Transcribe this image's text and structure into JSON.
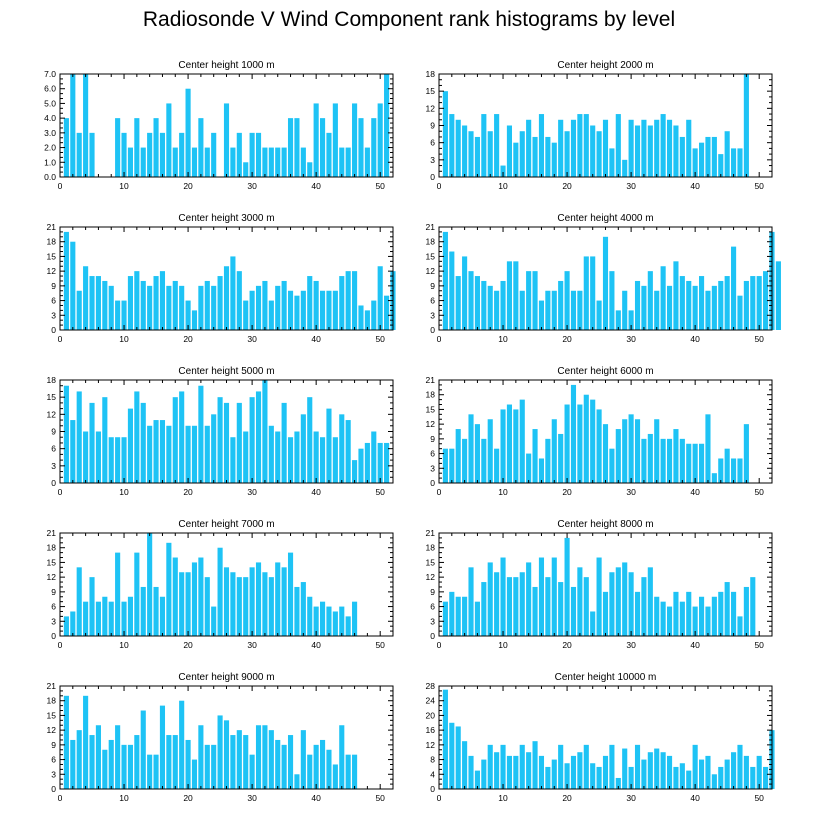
{
  "title": "Radiosonde V Wind Component rank histograms by level",
  "colors": {
    "bar": "#1ec3f5",
    "axis": "#000000"
  },
  "chart_data": [
    {
      "type": "bar",
      "title": "Center height 1000 m",
      "xlim": [
        0,
        52
      ],
      "ylim": [
        0,
        7
      ],
      "ytick_step": 1,
      "x_ticks": [
        "0",
        "10",
        "20",
        "30",
        "40",
        "50"
      ],
      "y_ticks": [
        "0.0",
        "1.0",
        "2.0",
        "3.0",
        "4.0",
        "5.0",
        "6.0",
        "7.0"
      ],
      "values": [
        4,
        7,
        3,
        7,
        3,
        0,
        0,
        0,
        4,
        3,
        2,
        4,
        2,
        3,
        4,
        3,
        5,
        2,
        3,
        6,
        2,
        4,
        2,
        3,
        0,
        5,
        2,
        3,
        1,
        3,
        3,
        2,
        2,
        2,
        2,
        4,
        4,
        2,
        1,
        5,
        4,
        3,
        5,
        2,
        2,
        5,
        4,
        2,
        4,
        5,
        7
      ]
    },
    {
      "type": "bar",
      "title": "Center height 2000 m",
      "xlim": [
        0,
        52
      ],
      "ylim": [
        0,
        18
      ],
      "ytick_step": 3,
      "x_ticks": [
        "0",
        "10",
        "20",
        "30",
        "40",
        "50"
      ],
      "y_ticks": [
        "0",
        "3",
        "6",
        "9",
        "12",
        "15",
        "18"
      ],
      "values": [
        15,
        11,
        10,
        9,
        8,
        7,
        11,
        8,
        11,
        2,
        9,
        6,
        8,
        10,
        7,
        11,
        7,
        6,
        10,
        8,
        10,
        11,
        11,
        9,
        8,
        10,
        5,
        11,
        3,
        10,
        9,
        10,
        9,
        10,
        11,
        10,
        9,
        7,
        10,
        5,
        6,
        7,
        7,
        4,
        8,
        5,
        5,
        18
      ]
    },
    {
      "type": "bar",
      "title": "Center height 3000 m",
      "xlim": [
        0,
        52
      ],
      "ylim": [
        0,
        21
      ],
      "ytick_step": 3,
      "x_ticks": [
        "0",
        "10",
        "20",
        "30",
        "40",
        "50"
      ],
      "y_ticks": [
        "0",
        "3",
        "6",
        "9",
        "12",
        "15",
        "18",
        "21"
      ],
      "values": [
        20,
        18,
        8,
        13,
        11,
        11,
        10,
        9,
        6,
        6,
        11,
        12,
        10,
        9,
        11,
        12,
        9,
        10,
        9,
        6,
        4,
        9,
        10,
        9,
        11,
        13,
        15,
        12,
        6,
        8,
        9,
        10,
        6,
        9,
        10,
        8,
        7,
        8,
        11,
        10,
        8,
        8,
        8,
        11,
        12,
        12,
        5,
        4,
        6,
        13,
        7,
        12
      ]
    },
    {
      "type": "bar",
      "title": "Center height 4000 m",
      "xlim": [
        0,
        52
      ],
      "ylim": [
        0,
        21
      ],
      "ytick_step": 3,
      "x_ticks": [
        "0",
        "10",
        "20",
        "30",
        "40",
        "50"
      ],
      "y_ticks": [
        "0",
        "3",
        "6",
        "9",
        "12",
        "15",
        "18",
        "21"
      ],
      "values": [
        20,
        16,
        11,
        15,
        12,
        11,
        10,
        9,
        8,
        10,
        14,
        14,
        8,
        12,
        12,
        6,
        8,
        8,
        10,
        12,
        8,
        8,
        15,
        15,
        6,
        19,
        12,
        4,
        8,
        4,
        10,
        9,
        12,
        8,
        13,
        9,
        14,
        11,
        10,
        9,
        11,
        8,
        9,
        10,
        11,
        17,
        7,
        10,
        11,
        11,
        12,
        20,
        14
      ]
    },
    {
      "type": "bar",
      "title": "Center height 5000 m",
      "xlim": [
        0,
        52
      ],
      "ylim": [
        0,
        18
      ],
      "ytick_step": 3,
      "x_ticks": [
        "0",
        "10",
        "20",
        "30",
        "40",
        "50"
      ],
      "y_ticks": [
        "0",
        "3",
        "6",
        "9",
        "12",
        "15",
        "18"
      ],
      "values": [
        17,
        11,
        16,
        9,
        14,
        9,
        15,
        8,
        8,
        8,
        13,
        16,
        14,
        10,
        11,
        11,
        10,
        15,
        16,
        10,
        10,
        17,
        10,
        12,
        15,
        14,
        8,
        14,
        9,
        15,
        16,
        18,
        10,
        9,
        14,
        8,
        9,
        12,
        15,
        9,
        8,
        13,
        8,
        12,
        11,
        4,
        6,
        7,
        9,
        7,
        7
      ]
    },
    {
      "type": "bar",
      "title": "Center height 6000 m",
      "xlim": [
        0,
        52
      ],
      "ylim": [
        0,
        21
      ],
      "ytick_step": 3,
      "x_ticks": [
        "0",
        "10",
        "20",
        "30",
        "40",
        "50"
      ],
      "y_ticks": [
        "0",
        "3",
        "6",
        "9",
        "12",
        "15",
        "18",
        "21"
      ],
      "values": [
        7,
        7,
        11,
        9,
        14,
        12,
        9,
        13,
        7,
        15,
        16,
        15,
        17,
        6,
        11,
        5,
        9,
        13,
        10,
        16,
        20,
        16,
        18,
        17,
        15,
        12,
        7,
        11,
        13,
        14,
        13,
        9,
        10,
        13,
        9,
        9,
        11,
        9,
        8,
        8,
        8,
        14,
        2,
        5,
        7,
        5,
        5,
        12
      ]
    },
    {
      "type": "bar",
      "title": "Center height 7000 m",
      "xlim": [
        0,
        52
      ],
      "ylim": [
        0,
        21
      ],
      "ytick_step": 3,
      "x_ticks": [
        "0",
        "10",
        "20",
        "30",
        "40",
        "50"
      ],
      "y_ticks": [
        "0",
        "3",
        "6",
        "9",
        "12",
        "15",
        "18",
        "21"
      ],
      "values": [
        4,
        5,
        14,
        7,
        12,
        7,
        8,
        7,
        17,
        7,
        8,
        17,
        10,
        21,
        10,
        8,
        19,
        16,
        13,
        13,
        15,
        16,
        12,
        6,
        18,
        14,
        13,
        12,
        12,
        14,
        15,
        13,
        12,
        15,
        14,
        17,
        10,
        11,
        8,
        6,
        7,
        6,
        5,
        6,
        4,
        7
      ]
    },
    {
      "type": "bar",
      "title": "Center height 8000 m",
      "xlim": [
        0,
        52
      ],
      "ylim": [
        0,
        21
      ],
      "ytick_step": 3,
      "x_ticks": [
        "0",
        "10",
        "20",
        "30",
        "40",
        "50"
      ],
      "y_ticks": [
        "0",
        "3",
        "6",
        "9",
        "12",
        "15",
        "18",
        "21"
      ],
      "values": [
        7,
        9,
        8,
        8,
        14,
        7,
        11,
        15,
        13,
        16,
        12,
        12,
        13,
        15,
        10,
        16,
        12,
        16,
        11,
        20,
        10,
        14,
        12,
        5,
        16,
        9,
        13,
        14,
        15,
        13,
        9,
        12,
        14,
        8,
        7,
        6,
        9,
        7,
        9,
        6,
        8,
        6,
        8,
        9,
        11,
        9,
        4,
        10,
        12
      ]
    },
    {
      "type": "bar",
      "title": "Center height 9000 m",
      "xlim": [
        0,
        52
      ],
      "ylim": [
        0,
        21
      ],
      "ytick_step": 3,
      "x_ticks": [
        "0",
        "10",
        "20",
        "30",
        "40",
        "50"
      ],
      "y_ticks": [
        "0",
        "3",
        "6",
        "9",
        "12",
        "15",
        "18",
        "21"
      ],
      "values": [
        19,
        10,
        12,
        19,
        11,
        13,
        8,
        10,
        13,
        9,
        9,
        11,
        16,
        7,
        7,
        17,
        11,
        11,
        18,
        10,
        6,
        13,
        9,
        9,
        15,
        14,
        11,
        12,
        11,
        7,
        13,
        13,
        12,
        10,
        9,
        11,
        3,
        12,
        7,
        9,
        10,
        8,
        5,
        13,
        7,
        7
      ]
    },
    {
      "type": "bar",
      "title": "Center height 10000 m",
      "xlim": [
        0,
        52
      ],
      "ylim": [
        0,
        28
      ],
      "ytick_step": 4,
      "x_ticks": [
        "0",
        "10",
        "20",
        "30",
        "40",
        "50"
      ],
      "y_ticks": [
        "0",
        "4",
        "8",
        "12",
        "16",
        "20",
        "24",
        "28"
      ],
      "values": [
        27,
        18,
        17,
        13,
        9,
        5,
        8,
        12,
        10,
        12,
        9,
        9,
        12,
        10,
        13,
        9,
        6,
        8,
        12,
        7,
        9,
        10,
        12,
        7,
        6,
        9,
        12,
        3,
        11,
        6,
        12,
        8,
        10,
        11,
        10,
        9,
        6,
        7,
        5,
        12,
        8,
        9,
        4,
        6,
        8,
        10,
        12,
        9,
        6,
        9,
        6,
        16
      ]
    }
  ]
}
